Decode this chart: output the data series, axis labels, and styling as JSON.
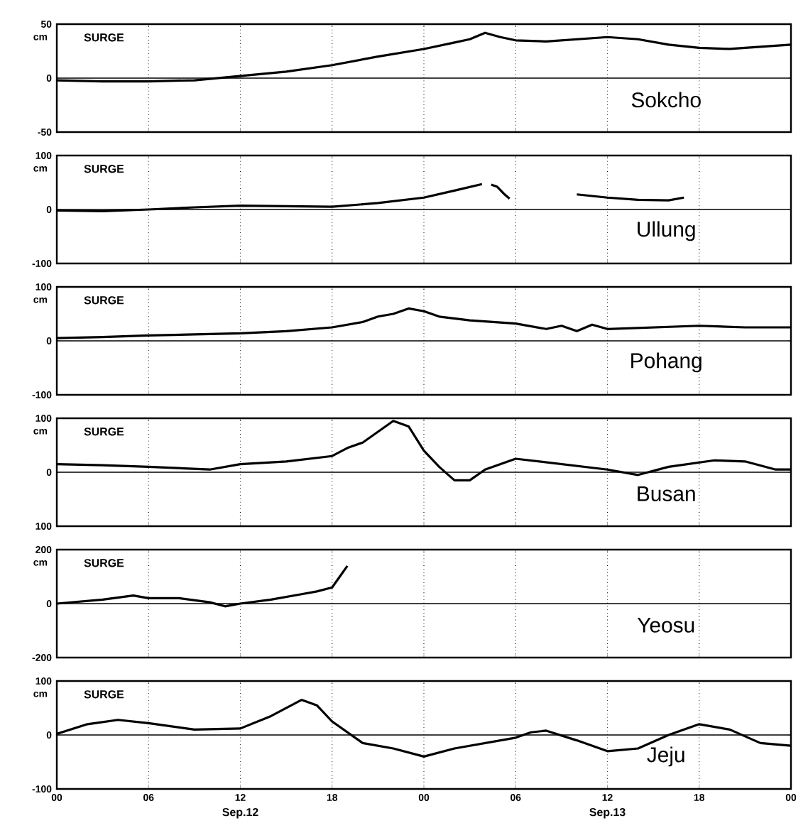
{
  "chart_data": [
    {
      "type": "line",
      "title": "SURGE",
      "ylabel": "cm",
      "annotations": [
        "Sokcho"
      ],
      "color": "#000000",
      "line_style": "solid",
      "grid": "x",
      "tick_labels": "y",
      "ref_lines": [
        {
          "axis": "y",
          "value": 0
        }
      ],
      "xlim": [
        0,
        48
      ],
      "xticks": [
        {
          "value": 0,
          "label": null
        },
        {
          "value": 6,
          "label": null
        },
        {
          "value": 12,
          "label": null
        },
        {
          "value": 18,
          "label": null
        },
        {
          "value": 24,
          "label": null
        },
        {
          "value": 30,
          "label": null
        },
        {
          "value": 36,
          "label": null
        },
        {
          "value": 42,
          "label": null
        },
        {
          "value": 48,
          "label": null
        }
      ],
      "ylim": [
        -50,
        50
      ],
      "yticks": [
        -50,
        0,
        50
      ],
      "x": [
        0,
        3,
        6,
        9,
        12,
        15,
        18,
        21,
        24,
        26,
        27,
        28,
        29,
        30,
        32,
        34,
        36,
        38,
        40,
        42,
        44,
        46,
        48
      ],
      "values": [
        -2,
        -3,
        -3,
        -2,
        2,
        6,
        12,
        20,
        27,
        33,
        36,
        42,
        38,
        35,
        34,
        36,
        38,
        36,
        31,
        28,
        27,
        29,
        31
      ]
    },
    {
      "type": "line",
      "title": "SURGE",
      "ylabel": "cm",
      "annotations": [
        "Ullung"
      ],
      "color": "#000000",
      "line_style": "solid",
      "grid": "x",
      "tick_labels": "y",
      "ref_lines": [
        {
          "axis": "y",
          "value": 0
        }
      ],
      "xlim": [
        0,
        48
      ],
      "xticks": [
        {
          "value": 0,
          "label": null
        },
        {
          "value": 6,
          "label": null
        },
        {
          "value": 12,
          "label": null
        },
        {
          "value": 18,
          "label": null
        },
        {
          "value": 24,
          "label": null
        },
        {
          "value": 30,
          "label": null
        },
        {
          "value": 36,
          "label": null
        },
        {
          "value": 42,
          "label": null
        },
        {
          "value": 48,
          "label": null
        }
      ],
      "ylim": [
        -100,
        100
      ],
      "yticks": [
        -100,
        0,
        100
      ],
      "x": [
        0,
        3,
        6,
        9,
        12,
        15,
        18,
        21,
        24,
        26,
        27.8,
        28.1,
        28.4,
        28.8,
        29.2,
        29.6,
        31,
        34,
        36,
        38,
        40,
        41
      ],
      "values": [
        -2,
        -3,
        0,
        4,
        7,
        6,
        5,
        12,
        22,
        35,
        47,
        null,
        46,
        42,
        30,
        20,
        null,
        28,
        22,
        18,
        17,
        22
      ]
    },
    {
      "type": "line",
      "title": "SURGE",
      "ylabel": "cm",
      "annotations": [
        "Pohang"
      ],
      "color": "#000000",
      "line_style": "solid",
      "grid": "x",
      "tick_labels": "y",
      "ref_lines": [
        {
          "axis": "y",
          "value": 0
        }
      ],
      "xlim": [
        0,
        48
      ],
      "xticks": [
        {
          "value": 0,
          "label": null
        },
        {
          "value": 6,
          "label": null
        },
        {
          "value": 12,
          "label": null
        },
        {
          "value": 18,
          "label": null
        },
        {
          "value": 24,
          "label": null
        },
        {
          "value": 30,
          "label": null
        },
        {
          "value": 36,
          "label": null
        },
        {
          "value": 42,
          "label": null
        },
        {
          "value": 48,
          "label": null
        }
      ],
      "ylim": [
        -100,
        100
      ],
      "yticks": [
        -100,
        0,
        100
      ],
      "x": [
        0,
        3,
        6,
        9,
        12,
        15,
        18,
        20,
        21,
        22,
        23,
        24,
        25,
        27,
        30,
        32,
        33,
        34,
        35,
        36,
        39,
        42,
        45,
        48
      ],
      "values": [
        5,
        7,
        10,
        12,
        14,
        18,
        25,
        35,
        45,
        50,
        60,
        55,
        45,
        38,
        32,
        22,
        28,
        18,
        30,
        22,
        25,
        28,
        25,
        25
      ]
    },
    {
      "type": "line",
      "title": "SURGE",
      "ylabel": "cm",
      "annotations": [
        "Busan"
      ],
      "color": "#000000",
      "line_style": "solid",
      "grid": "x",
      "tick_labels": "y",
      "ref_lines": [
        {
          "axis": "y",
          "value": 0
        }
      ],
      "xlim": [
        0,
        48
      ],
      "xticks": [
        {
          "value": 0,
          "label": null
        },
        {
          "value": 6,
          "label": null
        },
        {
          "value": 12,
          "label": null
        },
        {
          "value": 18,
          "label": null
        },
        {
          "value": 24,
          "label": null
        },
        {
          "value": 30,
          "label": null
        },
        {
          "value": 36,
          "label": null
        },
        {
          "value": 42,
          "label": null
        },
        {
          "value": 48,
          "label": null
        }
      ],
      "ylim": [
        -100,
        100
      ],
      "yticks": [
        {
          "value": -100,
          "label": "100"
        },
        0,
        100
      ],
      "x": [
        0,
        3,
        6,
        10,
        12,
        15,
        18,
        19,
        20,
        21,
        22,
        23,
        24,
        25,
        26,
        27,
        28,
        30,
        33,
        36,
        38,
        40,
        43,
        45,
        47,
        48
      ],
      "values": [
        15,
        13,
        10,
        5,
        15,
        20,
        30,
        45,
        55,
        75,
        95,
        85,
        40,
        10,
        -15,
        -15,
        5,
        25,
        15,
        5,
        -5,
        10,
        22,
        20,
        5,
        5
      ]
    },
    {
      "type": "line",
      "title": "SURGE",
      "ylabel": "cm",
      "annotations": [
        "Yeosu"
      ],
      "color": "#000000",
      "line_style": "solid",
      "grid": "x",
      "tick_labels": "y",
      "ref_lines": [
        {
          "axis": "y",
          "value": 0
        }
      ],
      "xlim": [
        0,
        48
      ],
      "xticks": [
        {
          "value": 0,
          "label": null
        },
        {
          "value": 6,
          "label": null
        },
        {
          "value": 12,
          "label": null
        },
        {
          "value": 18,
          "label": null
        },
        {
          "value": 24,
          "label": null
        },
        {
          "value": 30,
          "label": null
        },
        {
          "value": 36,
          "label": null
        },
        {
          "value": 42,
          "label": null
        },
        {
          "value": 48,
          "label": null
        }
      ],
      "ylim": [
        -200,
        200
      ],
      "yticks": [
        -200,
        0,
        200
      ],
      "x": [
        0,
        3,
        5,
        6,
        8,
        10,
        11,
        12,
        14,
        16,
        17,
        18,
        18.5,
        19
      ],
      "values": [
        0,
        15,
        30,
        20,
        20,
        5,
        -10,
        0,
        15,
        35,
        45,
        60,
        100,
        140
      ]
    },
    {
      "type": "line",
      "title": "SURGE",
      "ylabel": "cm",
      "annotations": [
        "Jeju",
        "Sep.12",
        "Sep.13"
      ],
      "color": "#000000",
      "line_style": "solid",
      "grid": "x",
      "ref_lines": [
        {
          "axis": "y",
          "value": 0
        }
      ],
      "xlim": [
        0,
        48
      ],
      "xticks": [
        {
          "value": 0,
          "label": "00"
        },
        {
          "value": 6,
          "label": "06"
        },
        {
          "value": 12,
          "label": "12"
        },
        {
          "value": 18,
          "label": "18"
        },
        {
          "value": 24,
          "label": "00"
        },
        {
          "value": 30,
          "label": "06"
        },
        {
          "value": 36,
          "label": "12"
        },
        {
          "value": 42,
          "label": "18"
        },
        {
          "value": 48,
          "label": "00"
        }
      ],
      "ylim": [
        -100,
        100
      ],
      "yticks": [
        -100,
        0,
        100
      ],
      "x": [
        0,
        2,
        4,
        6,
        9,
        12,
        14,
        16,
        17,
        18,
        20,
        22,
        24,
        26,
        28,
        30,
        31,
        32,
        34,
        36,
        38,
        40,
        42,
        44,
        46,
        48
      ],
      "values": [
        2,
        20,
        28,
        22,
        10,
        12,
        35,
        65,
        55,
        25,
        -15,
        -25,
        -40,
        -25,
        -15,
        -5,
        5,
        8,
        -10,
        -30,
        -25,
        0,
        20,
        10,
        -15,
        -20
      ]
    }
  ]
}
